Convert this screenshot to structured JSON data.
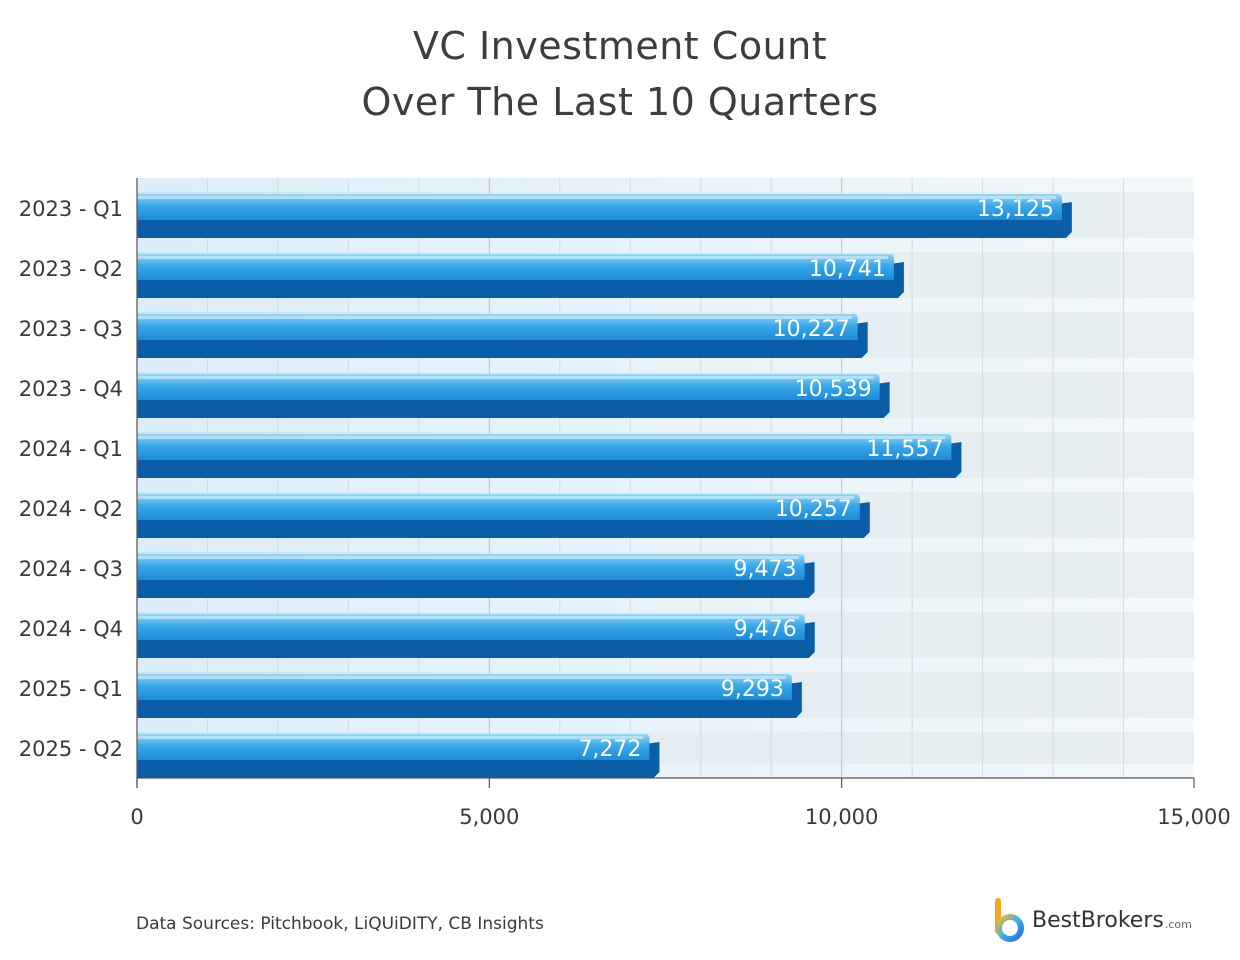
{
  "chart_data": {
    "type": "bar",
    "orientation": "horizontal",
    "title": [
      "VC Investment Count",
      "Over The Last 10 Quarters"
    ],
    "categories": [
      "2023 - Q1",
      "2023 - Q2",
      "2023 - Q3",
      "2023 - Q4",
      "2024 - Q1",
      "2024 - Q2",
      "2024 - Q3",
      "2024 - Q4",
      "2025 - Q1",
      "2025 - Q2"
    ],
    "values": [
      13125,
      10741,
      10227,
      10539,
      11557,
      10257,
      9473,
      9476,
      9293,
      7272
    ],
    "value_labels": [
      "13,125",
      "10,741",
      "10,227",
      "10,539",
      "11,557",
      "10,257",
      "9,473",
      "9,476",
      "9,293",
      "7,272"
    ],
    "xlim": [
      0,
      15000
    ],
    "x_ticks": [
      0,
      5000,
      10000,
      15000
    ],
    "x_tick_labels": [
      "0",
      "5,000",
      "10,000",
      "15,000"
    ],
    "grid": true,
    "colors": {
      "bar_top": "#8fd0f4",
      "bar_mid": "#2a9be0",
      "bar_dark": "#0a5ea8",
      "band_light": "#f2f8fc",
      "band_dark": "#e3ecf2"
    }
  },
  "footer": {
    "source": "Data Sources: Pitchbook, LiQUiDITY, CB Insights",
    "logo_name": "BestBrokers",
    "logo_suffix": ".com",
    "logo_icon": "bestbrokers-b-icon"
  }
}
